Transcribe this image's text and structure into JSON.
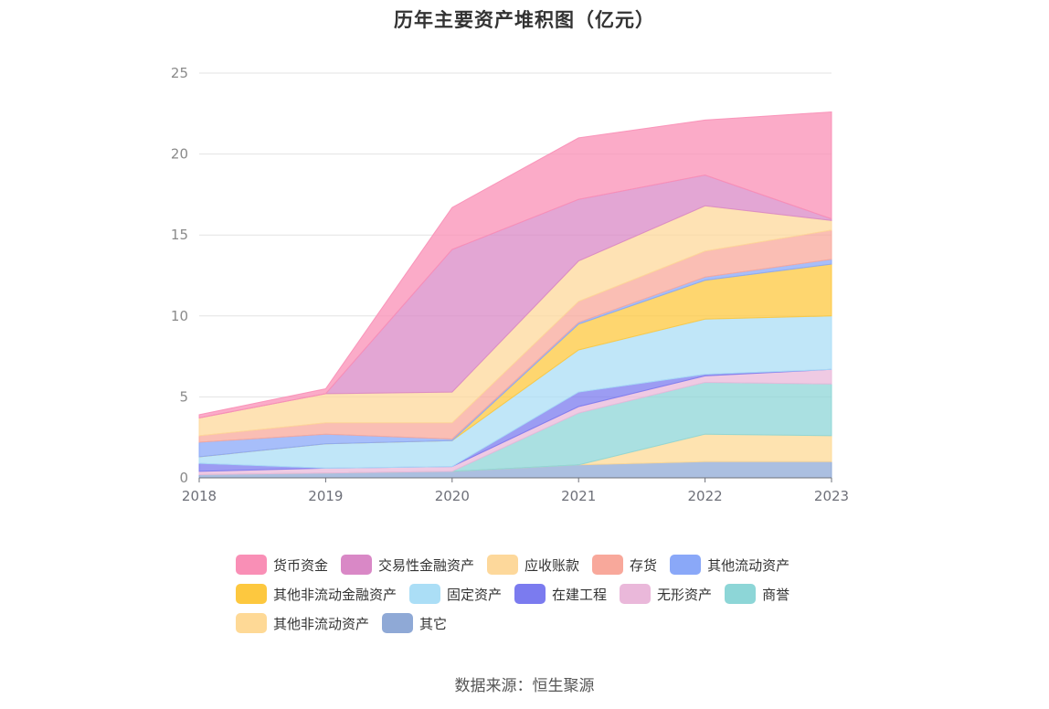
{
  "title": "历年主要资产堆积图（亿元）",
  "source": "数据来源：恒生聚源",
  "chart_data": {
    "type": "area",
    "stacked": true,
    "title": "历年主要资产堆积图（亿元）",
    "x": [
      "2018",
      "2019",
      "2020",
      "2021",
      "2022",
      "2023"
    ],
    "ylim": [
      0,
      25
    ],
    "yticks": [
      "0",
      "5",
      "10",
      "15",
      "20",
      "25"
    ],
    "grid": true,
    "legend_position": "bottom",
    "series": [
      {
        "name": "其它",
        "color": "#8fa9d6",
        "values": [
          0.2,
          0.3,
          0.4,
          0.8,
          1.0,
          1.0
        ]
      },
      {
        "name": "其他非流动资产",
        "color": "#fed996",
        "values": [
          0.0,
          0.0,
          0.0,
          0.0,
          1.7,
          1.6
        ]
      },
      {
        "name": "商誉",
        "color": "#8dd6d7",
        "values": [
          0.0,
          0.0,
          0.0,
          3.2,
          3.2,
          3.2
        ]
      },
      {
        "name": "无形资产",
        "color": "#eab8da",
        "values": [
          0.2,
          0.3,
          0.3,
          0.4,
          0.4,
          0.9
        ]
      },
      {
        "name": "在建工程",
        "color": "#7b7bef",
        "values": [
          0.5,
          0.0,
          0.0,
          0.9,
          0.1,
          0.0
        ]
      },
      {
        "name": "固定资产",
        "color": "#abdef6",
        "values": [
          0.4,
          1.5,
          1.6,
          2.6,
          3.4,
          3.3
        ]
      },
      {
        "name": "其他非流动金融资产",
        "color": "#fdc83f",
        "values": [
          0.0,
          0.0,
          0.0,
          1.6,
          2.4,
          3.2
        ]
      },
      {
        "name": "其他流动资产",
        "color": "#8aa8f8",
        "values": [
          0.9,
          0.6,
          0.1,
          0.1,
          0.2,
          0.3
        ]
      },
      {
        "name": "存货",
        "color": "#f8a89b",
        "values": [
          0.4,
          0.7,
          1.0,
          1.3,
          1.6,
          1.8
        ]
      },
      {
        "name": "应收账款",
        "color": "#fdd89b",
        "values": [
          1.1,
          1.8,
          1.9,
          2.5,
          2.8,
          0.6
        ]
      },
      {
        "name": "交易性金融资产",
        "color": "#d988c6",
        "values": [
          0.0,
          0.0,
          8.8,
          3.8,
          1.9,
          0.1
        ]
      },
      {
        "name": "货币资金",
        "color": "#f98fb6",
        "values": [
          0.2,
          0.3,
          2.6,
          3.8,
          3.4,
          6.6
        ]
      }
    ],
    "legend_order": [
      "货币资金",
      "交易性金融资产",
      "应收账款",
      "存货",
      "其他流动资产",
      "其他非流动金融资产",
      "固定资产",
      "在建工程",
      "无形资产",
      "商誉",
      "其他非流动资产",
      "其它"
    ]
  }
}
